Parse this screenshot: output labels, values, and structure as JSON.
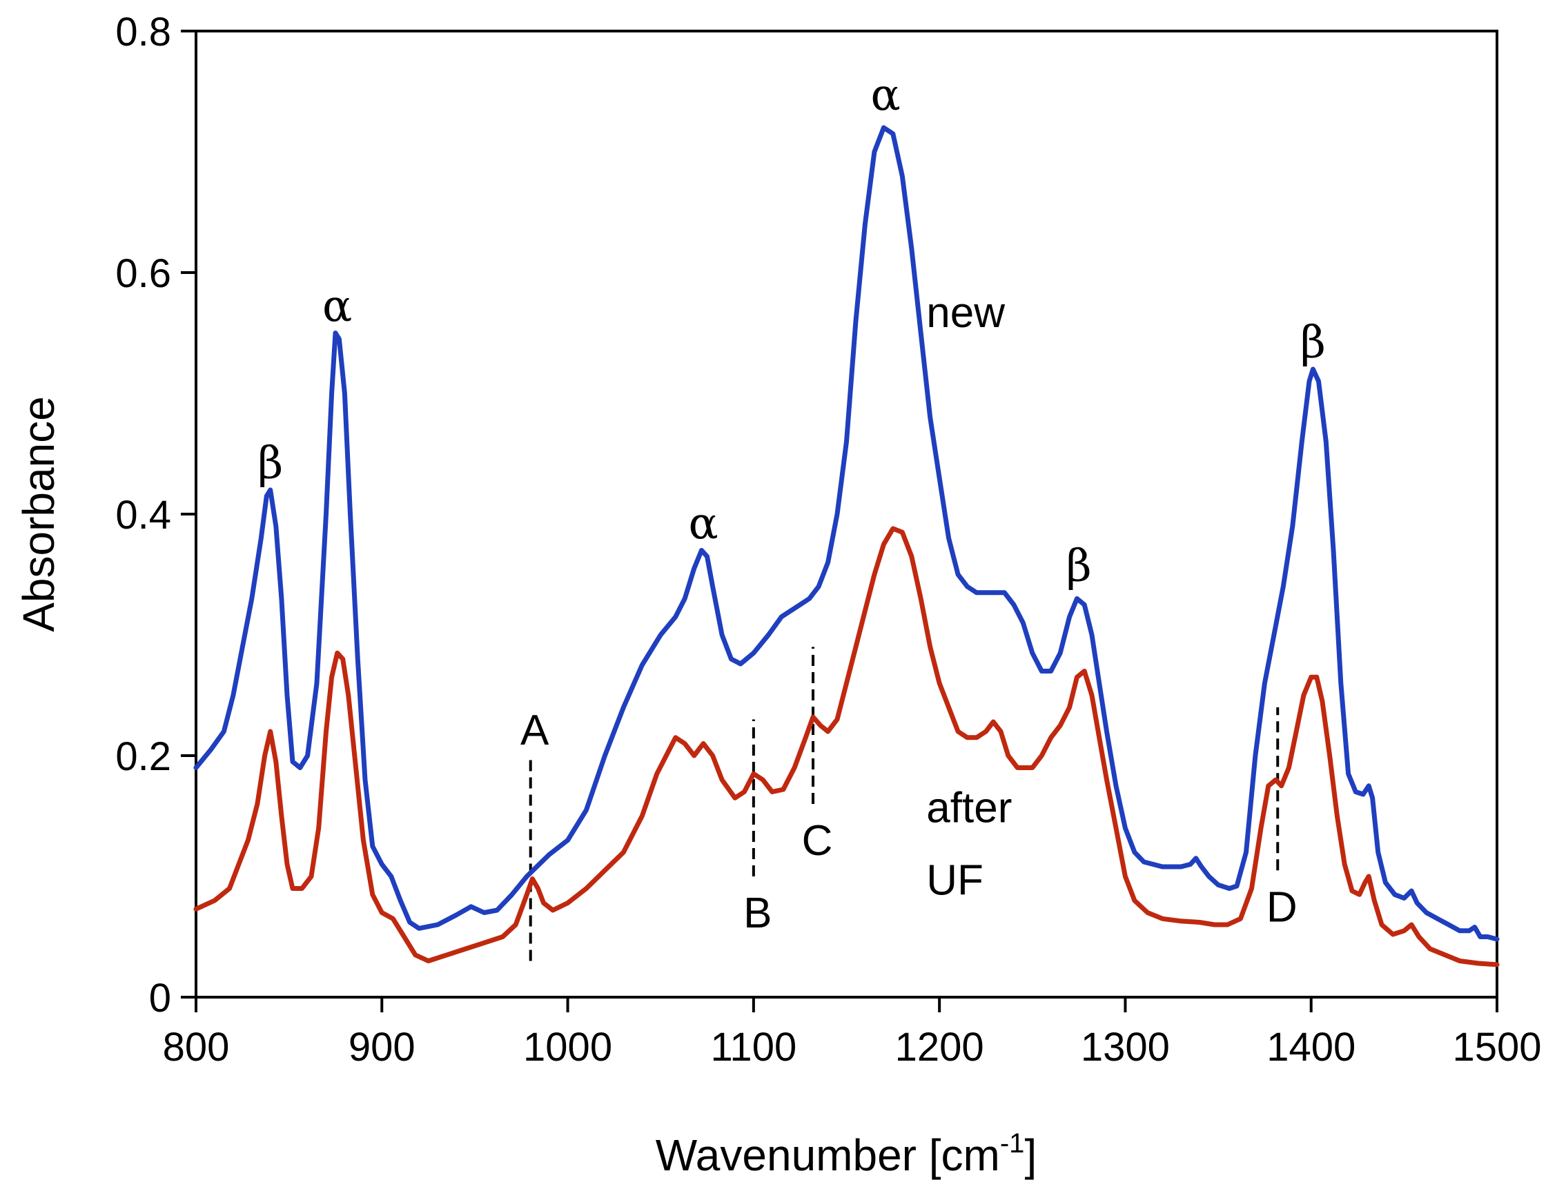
{
  "chart_data": {
    "type": "line",
    "title": "",
    "xlabel": "Wavenumber [cm",
    "xlabel_sup": "-1",
    "xlabel_end": "]",
    "ylabel": "Absorbance",
    "xlim": [
      800,
      1500
    ],
    "ylim": [
      0,
      0.8
    ],
    "grid": false,
    "x_ticks": [
      800,
      900,
      1000,
      1100,
      1200,
      1300,
      1400,
      1500
    ],
    "x_tick_labels": [
      "800",
      "900",
      "1000",
      "1100",
      "1200",
      "1300",
      "1400",
      "1500"
    ],
    "y_ticks": [
      0,
      0.2,
      0.4,
      0.6,
      0.8
    ],
    "y_tick_labels": [
      "0",
      "0.2",
      "0.4",
      "0.6",
      "0.8"
    ],
    "series": [
      {
        "name": "new",
        "color": "#1f3fbf",
        "points": [
          [
            800,
            0.19
          ],
          [
            808,
            0.205
          ],
          [
            815,
            0.22
          ],
          [
            820,
            0.25
          ],
          [
            825,
            0.29
          ],
          [
            830,
            0.33
          ],
          [
            835,
            0.38
          ],
          [
            838,
            0.415
          ],
          [
            840,
            0.42
          ],
          [
            843,
            0.39
          ],
          [
            846,
            0.33
          ],
          [
            849,
            0.25
          ],
          [
            852,
            0.195
          ],
          [
            856,
            0.19
          ],
          [
            860,
            0.2
          ],
          [
            865,
            0.26
          ],
          [
            870,
            0.4
          ],
          [
            873,
            0.5
          ],
          [
            875,
            0.55
          ],
          [
            877,
            0.545
          ],
          [
            880,
            0.5
          ],
          [
            883,
            0.4
          ],
          [
            887,
            0.28
          ],
          [
            891,
            0.18
          ],
          [
            895,
            0.125
          ],
          [
            900,
            0.11
          ],
          [
            905,
            0.1
          ],
          [
            910,
            0.08
          ],
          [
            915,
            0.062
          ],
          [
            920,
            0.057
          ],
          [
            930,
            0.06
          ],
          [
            940,
            0.068
          ],
          [
            948,
            0.075
          ],
          [
            955,
            0.07
          ],
          [
            962,
            0.072
          ],
          [
            970,
            0.085
          ],
          [
            978,
            0.1
          ],
          [
            990,
            0.118
          ],
          [
            1000,
            0.13
          ],
          [
            1010,
            0.155
          ],
          [
            1020,
            0.2
          ],
          [
            1030,
            0.24
          ],
          [
            1040,
            0.275
          ],
          [
            1050,
            0.3
          ],
          [
            1058,
            0.315
          ],
          [
            1063,
            0.33
          ],
          [
            1068,
            0.355
          ],
          [
            1072,
            0.37
          ],
          [
            1075,
            0.365
          ],
          [
            1078,
            0.34
          ],
          [
            1083,
            0.3
          ],
          [
            1088,
            0.28
          ],
          [
            1093,
            0.276
          ],
          [
            1100,
            0.285
          ],
          [
            1108,
            0.3
          ],
          [
            1115,
            0.315
          ],
          [
            1125,
            0.325
          ],
          [
            1130,
            0.33
          ],
          [
            1135,
            0.34
          ],
          [
            1140,
            0.36
          ],
          [
            1145,
            0.4
          ],
          [
            1150,
            0.46
          ],
          [
            1155,
            0.56
          ],
          [
            1160,
            0.64
          ],
          [
            1165,
            0.7
          ],
          [
            1170,
            0.72
          ],
          [
            1175,
            0.715
          ],
          [
            1180,
            0.68
          ],
          [
            1185,
            0.62
          ],
          [
            1190,
            0.55
          ],
          [
            1195,
            0.48
          ],
          [
            1200,
            0.43
          ],
          [
            1205,
            0.38
          ],
          [
            1210,
            0.35
          ],
          [
            1215,
            0.34
          ],
          [
            1220,
            0.335
          ],
          [
            1228,
            0.335
          ],
          [
            1235,
            0.335
          ],
          [
            1240,
            0.325
          ],
          [
            1245,
            0.31
          ],
          [
            1250,
            0.285
          ],
          [
            1255,
            0.27
          ],
          [
            1260,
            0.27
          ],
          [
            1265,
            0.285
          ],
          [
            1270,
            0.315
          ],
          [
            1274,
            0.33
          ],
          [
            1278,
            0.325
          ],
          [
            1282,
            0.3
          ],
          [
            1286,
            0.26
          ],
          [
            1290,
            0.22
          ],
          [
            1295,
            0.175
          ],
          [
            1300,
            0.14
          ],
          [
            1305,
            0.12
          ],
          [
            1310,
            0.112
          ],
          [
            1320,
            0.108
          ],
          [
            1330,
            0.108
          ],
          [
            1335,
            0.11
          ],
          [
            1338,
            0.115
          ],
          [
            1341,
            0.108
          ],
          [
            1345,
            0.1
          ],
          [
            1350,
            0.093
          ],
          [
            1356,
            0.09
          ],
          [
            1360,
            0.092
          ],
          [
            1365,
            0.12
          ],
          [
            1370,
            0.2
          ],
          [
            1375,
            0.26
          ],
          [
            1380,
            0.3
          ],
          [
            1385,
            0.34
          ],
          [
            1390,
            0.39
          ],
          [
            1395,
            0.46
          ],
          [
            1399,
            0.51
          ],
          [
            1401,
            0.52
          ],
          [
            1404,
            0.51
          ],
          [
            1408,
            0.46
          ],
          [
            1412,
            0.37
          ],
          [
            1416,
            0.26
          ],
          [
            1420,
            0.185
          ],
          [
            1424,
            0.17
          ],
          [
            1428,
            0.168
          ],
          [
            1431,
            0.175
          ],
          [
            1433,
            0.165
          ],
          [
            1436,
            0.12
          ],
          [
            1440,
            0.095
          ],
          [
            1445,
            0.085
          ],
          [
            1450,
            0.082
          ],
          [
            1454,
            0.088
          ],
          [
            1457,
            0.078
          ],
          [
            1462,
            0.07
          ],
          [
            1468,
            0.065
          ],
          [
            1474,
            0.06
          ],
          [
            1480,
            0.055
          ],
          [
            1485,
            0.055
          ],
          [
            1488,
            0.058
          ],
          [
            1491,
            0.05
          ],
          [
            1495,
            0.05
          ],
          [
            1500,
            0.048
          ]
        ]
      },
      {
        "name": "after UF",
        "color": "#c0290f",
        "points": [
          [
            800,
            0.073
          ],
          [
            810,
            0.08
          ],
          [
            818,
            0.09
          ],
          [
            823,
            0.11
          ],
          [
            828,
            0.13
          ],
          [
            833,
            0.16
          ],
          [
            837,
            0.2
          ],
          [
            840,
            0.22
          ],
          [
            843,
            0.195
          ],
          [
            846,
            0.15
          ],
          [
            849,
            0.11
          ],
          [
            852,
            0.09
          ],
          [
            857,
            0.09
          ],
          [
            862,
            0.1
          ],
          [
            866,
            0.14
          ],
          [
            870,
            0.22
          ],
          [
            873,
            0.265
          ],
          [
            876,
            0.285
          ],
          [
            879,
            0.28
          ],
          [
            882,
            0.25
          ],
          [
            886,
            0.19
          ],
          [
            890,
            0.13
          ],
          [
            895,
            0.085
          ],
          [
            900,
            0.07
          ],
          [
            906,
            0.065
          ],
          [
            912,
            0.05
          ],
          [
            918,
            0.035
          ],
          [
            925,
            0.03
          ],
          [
            935,
            0.035
          ],
          [
            945,
            0.04
          ],
          [
            955,
            0.045
          ],
          [
            965,
            0.05
          ],
          [
            972,
            0.06
          ],
          [
            978,
            0.085
          ],
          [
            981,
            0.098
          ],
          [
            984,
            0.09
          ],
          [
            987,
            0.078
          ],
          [
            992,
            0.072
          ],
          [
            1000,
            0.078
          ],
          [
            1010,
            0.09
          ],
          [
            1020,
            0.105
          ],
          [
            1030,
            0.12
          ],
          [
            1040,
            0.15
          ],
          [
            1048,
            0.185
          ],
          [
            1053,
            0.2
          ],
          [
            1058,
            0.215
          ],
          [
            1063,
            0.21
          ],
          [
            1068,
            0.2
          ],
          [
            1073,
            0.21
          ],
          [
            1078,
            0.2
          ],
          [
            1083,
            0.18
          ],
          [
            1090,
            0.165
          ],
          [
            1095,
            0.17
          ],
          [
            1100,
            0.185
          ],
          [
            1105,
            0.18
          ],
          [
            1110,
            0.17
          ],
          [
            1116,
            0.172
          ],
          [
            1122,
            0.19
          ],
          [
            1128,
            0.215
          ],
          [
            1132,
            0.232
          ],
          [
            1136,
            0.225
          ],
          [
            1140,
            0.22
          ],
          [
            1145,
            0.23
          ],
          [
            1150,
            0.26
          ],
          [
            1155,
            0.29
          ],
          [
            1160,
            0.32
          ],
          [
            1165,
            0.35
          ],
          [
            1170,
            0.375
          ],
          [
            1175,
            0.388
          ],
          [
            1180,
            0.385
          ],
          [
            1185,
            0.365
          ],
          [
            1190,
            0.33
          ],
          [
            1195,
            0.29
          ],
          [
            1200,
            0.26
          ],
          [
            1205,
            0.24
          ],
          [
            1210,
            0.22
          ],
          [
            1215,
            0.215
          ],
          [
            1220,
            0.215
          ],
          [
            1225,
            0.22
          ],
          [
            1229,
            0.228
          ],
          [
            1233,
            0.22
          ],
          [
            1237,
            0.2
          ],
          [
            1242,
            0.19
          ],
          [
            1250,
            0.19
          ],
          [
            1255,
            0.2
          ],
          [
            1260,
            0.215
          ],
          [
            1265,
            0.225
          ],
          [
            1270,
            0.24
          ],
          [
            1274,
            0.265
          ],
          [
            1278,
            0.27
          ],
          [
            1282,
            0.25
          ],
          [
            1286,
            0.215
          ],
          [
            1290,
            0.18
          ],
          [
            1295,
            0.14
          ],
          [
            1300,
            0.1
          ],
          [
            1305,
            0.08
          ],
          [
            1312,
            0.07
          ],
          [
            1320,
            0.065
          ],
          [
            1330,
            0.063
          ],
          [
            1340,
            0.062
          ],
          [
            1348,
            0.06
          ],
          [
            1355,
            0.06
          ],
          [
            1362,
            0.065
          ],
          [
            1368,
            0.09
          ],
          [
            1373,
            0.14
          ],
          [
            1377,
            0.175
          ],
          [
            1381,
            0.18
          ],
          [
            1384,
            0.175
          ],
          [
            1388,
            0.19
          ],
          [
            1392,
            0.22
          ],
          [
            1396,
            0.25
          ],
          [
            1400,
            0.265
          ],
          [
            1403,
            0.265
          ],
          [
            1406,
            0.245
          ],
          [
            1410,
            0.2
          ],
          [
            1414,
            0.15
          ],
          [
            1418,
            0.11
          ],
          [
            1422,
            0.088
          ],
          [
            1426,
            0.085
          ],
          [
            1429,
            0.095
          ],
          [
            1431,
            0.1
          ],
          [
            1434,
            0.08
          ],
          [
            1438,
            0.06
          ],
          [
            1444,
            0.052
          ],
          [
            1450,
            0.055
          ],
          [
            1454,
            0.06
          ],
          [
            1458,
            0.05
          ],
          [
            1464,
            0.04
          ],
          [
            1472,
            0.035
          ],
          [
            1480,
            0.03
          ],
          [
            1490,
            0.028
          ],
          [
            1500,
            0.027
          ]
        ]
      }
    ],
    "reference_lines": [
      {
        "label": "A",
        "x": 980,
        "y_range": [
          0.03,
          0.2
        ],
        "label_pos": "top"
      },
      {
        "label": "B",
        "x": 1100,
        "y_range": [
          0.1,
          0.23
        ],
        "label_pos": "bottom"
      },
      {
        "label": "C",
        "x": 1132,
        "y_range": [
          0.16,
          0.29
        ],
        "label_pos": "bottom"
      },
      {
        "label": "D",
        "x": 1382,
        "y_range": [
          0.105,
          0.24
        ],
        "label_pos": "bottom"
      }
    ],
    "annotations": [
      {
        "text": "β",
        "x": 840,
        "y": 0.43,
        "kind": "greek"
      },
      {
        "text": "α",
        "x": 876,
        "y": 0.56,
        "kind": "greek"
      },
      {
        "text": "α",
        "x": 1073,
        "y": 0.38,
        "kind": "greek"
      },
      {
        "text": "α",
        "x": 1171,
        "y": 0.735,
        "kind": "greek"
      },
      {
        "text": "β",
        "x": 1275,
        "y": 0.345,
        "kind": "greek"
      },
      {
        "text": "β",
        "x": 1401,
        "y": 0.53,
        "kind": "greek"
      },
      {
        "text": "new",
        "x": 1193,
        "y": 0.555,
        "kind": "label"
      },
      {
        "text": "after",
        "x": 1193,
        "y": 0.145,
        "kind": "label"
      },
      {
        "text": "UF",
        "x": 1193,
        "y": 0.085,
        "kind": "label"
      }
    ]
  }
}
